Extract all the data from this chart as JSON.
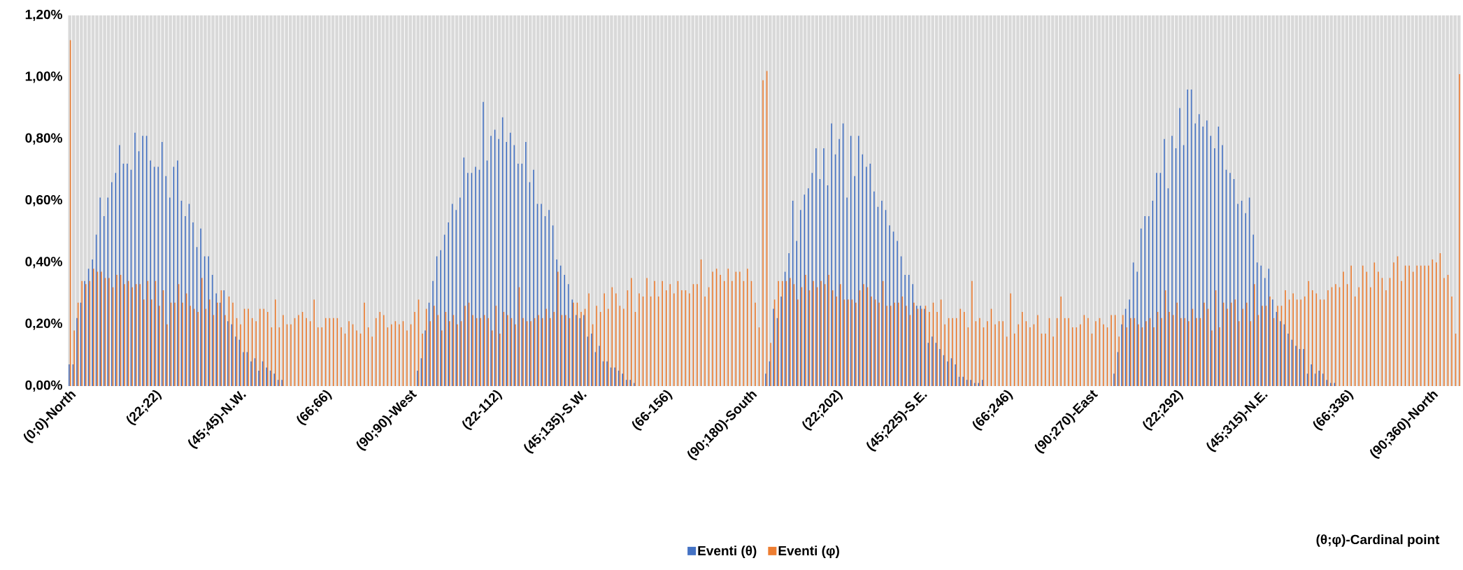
{
  "chart_data": {
    "type": "bar",
    "annotations": [
      "(θ;φ)-Cardinal point"
    ],
    "categories": [
      "(0;0)-North",
      null,
      null,
      null,
      null,
      null,
      null,
      null,
      null,
      null,
      null,
      null,
      null,
      null,
      null,
      null,
      null,
      null,
      null,
      null,
      null,
      null,
      "(22;22)",
      null,
      null,
      null,
      null,
      null,
      null,
      null,
      null,
      null,
      null,
      null,
      null,
      null,
      null,
      null,
      null,
      null,
      null,
      null,
      null,
      null,
      "(45;45)-N.W.",
      null,
      null,
      null,
      null,
      null,
      null,
      null,
      null,
      null,
      null,
      null,
      null,
      null,
      null,
      null,
      null,
      null,
      null,
      null,
      null,
      null,
      "(66;66)",
      null,
      null,
      null,
      null,
      null,
      null,
      null,
      null,
      null,
      null,
      null,
      null,
      null,
      null,
      null,
      null,
      null,
      null,
      null,
      null,
      null,
      "(90;90)-West",
      null,
      null,
      null,
      null,
      null,
      null,
      null,
      null,
      null,
      null,
      null,
      null,
      null,
      null,
      null,
      null,
      null,
      null,
      null,
      null,
      null,
      "(22-112)",
      null,
      null,
      null,
      null,
      null,
      null,
      null,
      null,
      null,
      null,
      null,
      null,
      null,
      null,
      null,
      null,
      null,
      null,
      null,
      null,
      null,
      "(45;135)-S.W.",
      null,
      null,
      null,
      null,
      null,
      null,
      null,
      null,
      null,
      null,
      null,
      null,
      null,
      null,
      null,
      null,
      null,
      null,
      null,
      null,
      null,
      "(66-156)",
      null,
      null,
      null,
      null,
      null,
      null,
      null,
      null,
      null,
      null,
      null,
      null,
      null,
      null,
      null,
      null,
      null,
      null,
      null,
      null,
      null,
      "(90;180)-South",
      null,
      null,
      null,
      null,
      null,
      null,
      null,
      null,
      null,
      null,
      null,
      null,
      null,
      null,
      null,
      null,
      null,
      null,
      null,
      null,
      null,
      "(22;202)",
      null,
      null,
      null,
      null,
      null,
      null,
      null,
      null,
      null,
      null,
      null,
      null,
      null,
      null,
      null,
      null,
      null,
      null,
      null,
      null,
      null,
      "(45;225)-S.E.",
      null,
      null,
      null,
      null,
      null,
      null,
      null,
      null,
      null,
      null,
      null,
      null,
      null,
      null,
      null,
      null,
      null,
      null,
      null,
      null,
      null,
      "(66;246)",
      null,
      null,
      null,
      null,
      null,
      null,
      null,
      null,
      null,
      null,
      null,
      null,
      null,
      null,
      null,
      null,
      null,
      null,
      null,
      null,
      null,
      "(90;270)-East",
      null,
      null,
      null,
      null,
      null,
      null,
      null,
      null,
      null,
      null,
      null,
      null,
      null,
      null,
      null,
      null,
      null,
      null,
      null,
      null,
      null,
      "(22;292)",
      null,
      null,
      null,
      null,
      null,
      null,
      null,
      null,
      null,
      null,
      null,
      null,
      null,
      null,
      null,
      null,
      null,
      null,
      null,
      null,
      null,
      "(45;315)-N.E.",
      null,
      null,
      null,
      null,
      null,
      null,
      null,
      null,
      null,
      null,
      null,
      null,
      null,
      null,
      null,
      null,
      null,
      null,
      null,
      null,
      null,
      "(66;336)",
      null,
      null,
      null,
      null,
      null,
      null,
      null,
      null,
      null,
      null,
      null,
      null,
      null,
      null,
      null,
      null,
      null,
      null,
      null,
      null,
      null,
      "(90;360)-North",
      null,
      null,
      null,
      null,
      null,
      null,
      null
    ],
    "series": [
      {
        "name": "Eventi (θ)",
        "color": "#4472c4",
        "values": [
          0.07,
          0.07,
          0.22,
          0.27,
          0.34,
          0.38,
          0.41,
          0.49,
          0.61,
          0.55,
          0.61,
          0.66,
          0.69,
          0.78,
          0.72,
          0.72,
          0.7,
          0.82,
          0.76,
          0.81,
          0.81,
          0.73,
          0.71,
          0.71,
          0.79,
          0.68,
          0.61,
          0.71,
          0.73,
          0.6,
          0.55,
          0.59,
          0.53,
          0.45,
          0.51,
          0.42,
          0.42,
          0.36,
          0.3,
          0.27,
          0.31,
          0.21,
          0.2,
          0.16,
          0.15,
          0.11,
          0.11,
          0.08,
          0.09,
          0.05,
          0.08,
          0.06,
          0.05,
          0.04,
          0.02,
          0.02,
          0,
          0,
          0,
          0,
          0,
          0,
          0,
          0,
          0,
          0,
          0,
          0,
          0,
          0,
          0,
          0,
          0,
          0,
          0,
          0,
          0,
          0,
          0,
          0,
          0,
          0,
          0,
          0,
          0,
          0,
          0,
          0,
          0,
          0,
          0.05,
          0.09,
          0.18,
          0.27,
          0.34,
          0.42,
          0.44,
          0.49,
          0.53,
          0.59,
          0.57,
          0.61,
          0.74,
          0.69,
          0.69,
          0.71,
          0.7,
          0.92,
          0.73,
          0.81,
          0.83,
          0.8,
          0.87,
          0.79,
          0.82,
          0.78,
          0.72,
          0.72,
          0.79,
          0.66,
          0.7,
          0.59,
          0.59,
          0.55,
          0.57,
          0.52,
          0.41,
          0.39,
          0.36,
          0.33,
          0.28,
          0.23,
          0.22,
          0.23,
          0.16,
          0.17,
          0.11,
          0.13,
          0.08,
          0.08,
          0.06,
          0.06,
          0.05,
          0.04,
          0.02,
          0.02,
          0.01,
          0,
          0,
          0,
          0,
          0,
          0,
          0,
          0,
          0,
          0,
          0,
          0,
          0,
          0,
          0,
          0,
          0,
          0,
          0,
          0,
          0,
          0,
          0,
          0,
          0,
          0,
          0,
          0,
          0,
          0,
          0,
          0,
          0,
          0.04,
          0.08,
          0.25,
          0.22,
          0.29,
          0.37,
          0.43,
          0.6,
          0.47,
          0.57,
          0.62,
          0.64,
          0.69,
          0.77,
          0.67,
          0.77,
          0.65,
          0.85,
          0.75,
          0.8,
          0.85,
          0.61,
          0.81,
          0.68,
          0.81,
          0.75,
          0.71,
          0.72,
          0.63,
          0.58,
          0.6,
          0.57,
          0.52,
          0.5,
          0.47,
          0.42,
          0.36,
          0.36,
          0.33,
          0.26,
          0.26,
          0.25,
          0.14,
          0.16,
          0.14,
          0.12,
          0.1,
          0.08,
          0.09,
          0.07,
          0.03,
          0.03,
          0.02,
          0.02,
          0.01,
          0.01,
          0.02,
          0,
          0,
          0,
          0,
          0,
          0,
          0,
          0,
          0,
          0,
          0,
          0,
          0,
          0,
          0,
          0,
          0,
          0,
          0,
          0,
          0,
          0,
          0,
          0,
          0,
          0,
          0,
          0,
          0,
          0,
          0,
          0,
          0,
          0.04,
          0.11,
          0.2,
          0.25,
          0.28,
          0.4,
          0.37,
          0.51,
          0.55,
          0.55,
          0.6,
          0.69,
          0.69,
          0.8,
          0.64,
          0.81,
          0.77,
          0.9,
          0.78,
          0.96,
          0.96,
          0.85,
          0.88,
          0.84,
          0.86,
          0.81,
          0.77,
          0.84,
          0.78,
          0.7,
          0.69,
          0.67,
          0.59,
          0.6,
          0.56,
          0.61,
          0.49,
          0.4,
          0.39,
          0.35,
          0.38,
          0.28,
          0.24,
          0.21,
          0.2,
          0.17,
          0.15,
          0.13,
          0.12,
          0.12,
          0.04,
          0.07,
          0.04,
          0.05,
          0.04,
          0.02,
          0.01,
          0.01,
          0,
          0,
          0,
          0,
          0,
          0,
          0,
          0,
          0,
          0,
          0,
          0,
          0,
          0,
          0,
          0,
          0,
          0,
          0,
          0,
          0,
          0,
          0,
          0,
          0,
          0,
          0,
          0,
          0,
          0,
          0,
          0
        ]
      },
      {
        "name": "Eventi (φ)",
        "color": "#ed7d31",
        "values": [
          1.12,
          0.18,
          0.27,
          0.34,
          0.33,
          0.34,
          0.38,
          0.37,
          0.37,
          0.35,
          0.35,
          0.32,
          0.36,
          0.36,
          0.33,
          0.34,
          0.32,
          0.33,
          0.33,
          0.28,
          0.34,
          0.28,
          0.34,
          0.26,
          0.31,
          0.2,
          0.27,
          0.27,
          0.33,
          0.27,
          0.3,
          0.26,
          0.25,
          0.24,
          0.35,
          0.25,
          0.28,
          0.23,
          0.27,
          0.31,
          0.23,
          0.29,
          0.27,
          0.22,
          0.2,
          0.25,
          0.25,
          0.22,
          0.21,
          0.25,
          0.25,
          0.24,
          0.19,
          0.28,
          0.19,
          0.23,
          0.2,
          0.2,
          0.22,
          0.23,
          0.24,
          0.22,
          0.21,
          0.28,
          0.19,
          0.19,
          0.22,
          0.22,
          0.22,
          0.22,
          0.19,
          0.17,
          0.21,
          0.2,
          0.18,
          0.17,
          0.27,
          0.19,
          0.16,
          0.22,
          0.24,
          0.23,
          0.19,
          0.2,
          0.21,
          0.2,
          0.21,
          0.18,
          0.2,
          0.24,
          0.28,
          0.17,
          0.25,
          0.21,
          0.26,
          0.23,
          0.18,
          0.24,
          0.21,
          0.23,
          0.2,
          0.21,
          0.26,
          0.27,
          0.23,
          0.22,
          0.22,
          0.23,
          0.22,
          0.18,
          0.26,
          0.17,
          0.24,
          0.23,
          0.22,
          0.2,
          0.32,
          0.22,
          0.21,
          0.21,
          0.22,
          0.23,
          0.22,
          0.25,
          0.22,
          0.24,
          0.37,
          0.23,
          0.23,
          0.22,
          0.27,
          0.27,
          0.24,
          0.25,
          0.3,
          0.2,
          0.26,
          0.24,
          0.3,
          0.25,
          0.32,
          0.3,
          0.26,
          0.25,
          0.31,
          0.35,
          0.24,
          0.3,
          0.29,
          0.35,
          0.29,
          0.34,
          0.29,
          0.34,
          0.31,
          0.33,
          0.3,
          0.34,
          0.31,
          0.31,
          0.3,
          0.33,
          0.33,
          0.41,
          0.29,
          0.32,
          0.37,
          0.38,
          0.36,
          0.34,
          0.38,
          0.34,
          0.37,
          0.37,
          0.34,
          0.38,
          0.34,
          0.27,
          0.19,
          0.99,
          1.02,
          0.14,
          0.28,
          0.34,
          0.34,
          0.34,
          0.35,
          0.33,
          0.28,
          0.32,
          0.36,
          0.31,
          0.34,
          0.32,
          0.34,
          0.33,
          0.36,
          0.31,
          0.29,
          0.33,
          0.28,
          0.28,
          0.28,
          0.27,
          0.31,
          0.33,
          0.32,
          0.29,
          0.28,
          0.27,
          0.34,
          0.26,
          0.26,
          0.27,
          0.27,
          0.29,
          0.26,
          0.23,
          0.27,
          0.25,
          0.25,
          0.26,
          0.24,
          0.27,
          0.24,
          0.28,
          0.2,
          0.22,
          0.22,
          0.22,
          0.25,
          0.24,
          0.19,
          0.34,
          0.21,
          0.22,
          0.19,
          0.21,
          0.25,
          0.2,
          0.21,
          0.21,
          0.16,
          0.3,
          0.17,
          0.2,
          0.24,
          0.21,
          0.19,
          0.2,
          0.23,
          0.17,
          0.17,
          0.22,
          0.16,
          0.22,
          0.29,
          0.22,
          0.22,
          0.19,
          0.19,
          0.2,
          0.23,
          0.22,
          0.17,
          0.21,
          0.22,
          0.2,
          0.19,
          0.23,
          0.23,
          0.16,
          0.23,
          0.19,
          0.22,
          0.22,
          0.2,
          0.19,
          0.21,
          0.22,
          0.19,
          0.24,
          0.22,
          0.31,
          0.24,
          0.23,
          0.27,
          0.22,
          0.22,
          0.21,
          0.25,
          0.22,
          0.22,
          0.27,
          0.25,
          0.18,
          0.31,
          0.19,
          0.27,
          0.25,
          0.27,
          0.28,
          0.21,
          0.25,
          0.27,
          0.21,
          0.33,
          0.23,
          0.26,
          0.26,
          0.29,
          0.22,
          0.26,
          0.26,
          0.31,
          0.28,
          0.3,
          0.28,
          0.28,
          0.29,
          0.34,
          0.31,
          0.3,
          0.28,
          0.28,
          0.31,
          0.32,
          0.33,
          0.32,
          0.37,
          0.33,
          0.39,
          0.29,
          0.32,
          0.39,
          0.37,
          0.32,
          0.4,
          0.37,
          0.35,
          0.31,
          0.35,
          0.4,
          0.42,
          0.34,
          0.39,
          0.39,
          0.37,
          0.39,
          0.39,
          0.39,
          0.39,
          0.41,
          0.4,
          0.43,
          0.35,
          0.36,
          0.29,
          0.17,
          1.01
        ]
      }
    ],
    "ylim": [
      0,
      1.2
    ],
    "yticks": [
      {
        "value": 0,
        "label": "0,00%"
      },
      {
        "value": 0.2,
        "label": "0,20%"
      },
      {
        "value": 0.4,
        "label": "0,40%"
      },
      {
        "value": 0.6,
        "label": "0,60%"
      },
      {
        "value": 0.8,
        "label": "0,80%"
      },
      {
        "value": 1.0,
        "label": "1,00%"
      },
      {
        "value": 1.2,
        "label": "1,20%"
      }
    ],
    "grid": "x",
    "legend": "bottom"
  }
}
